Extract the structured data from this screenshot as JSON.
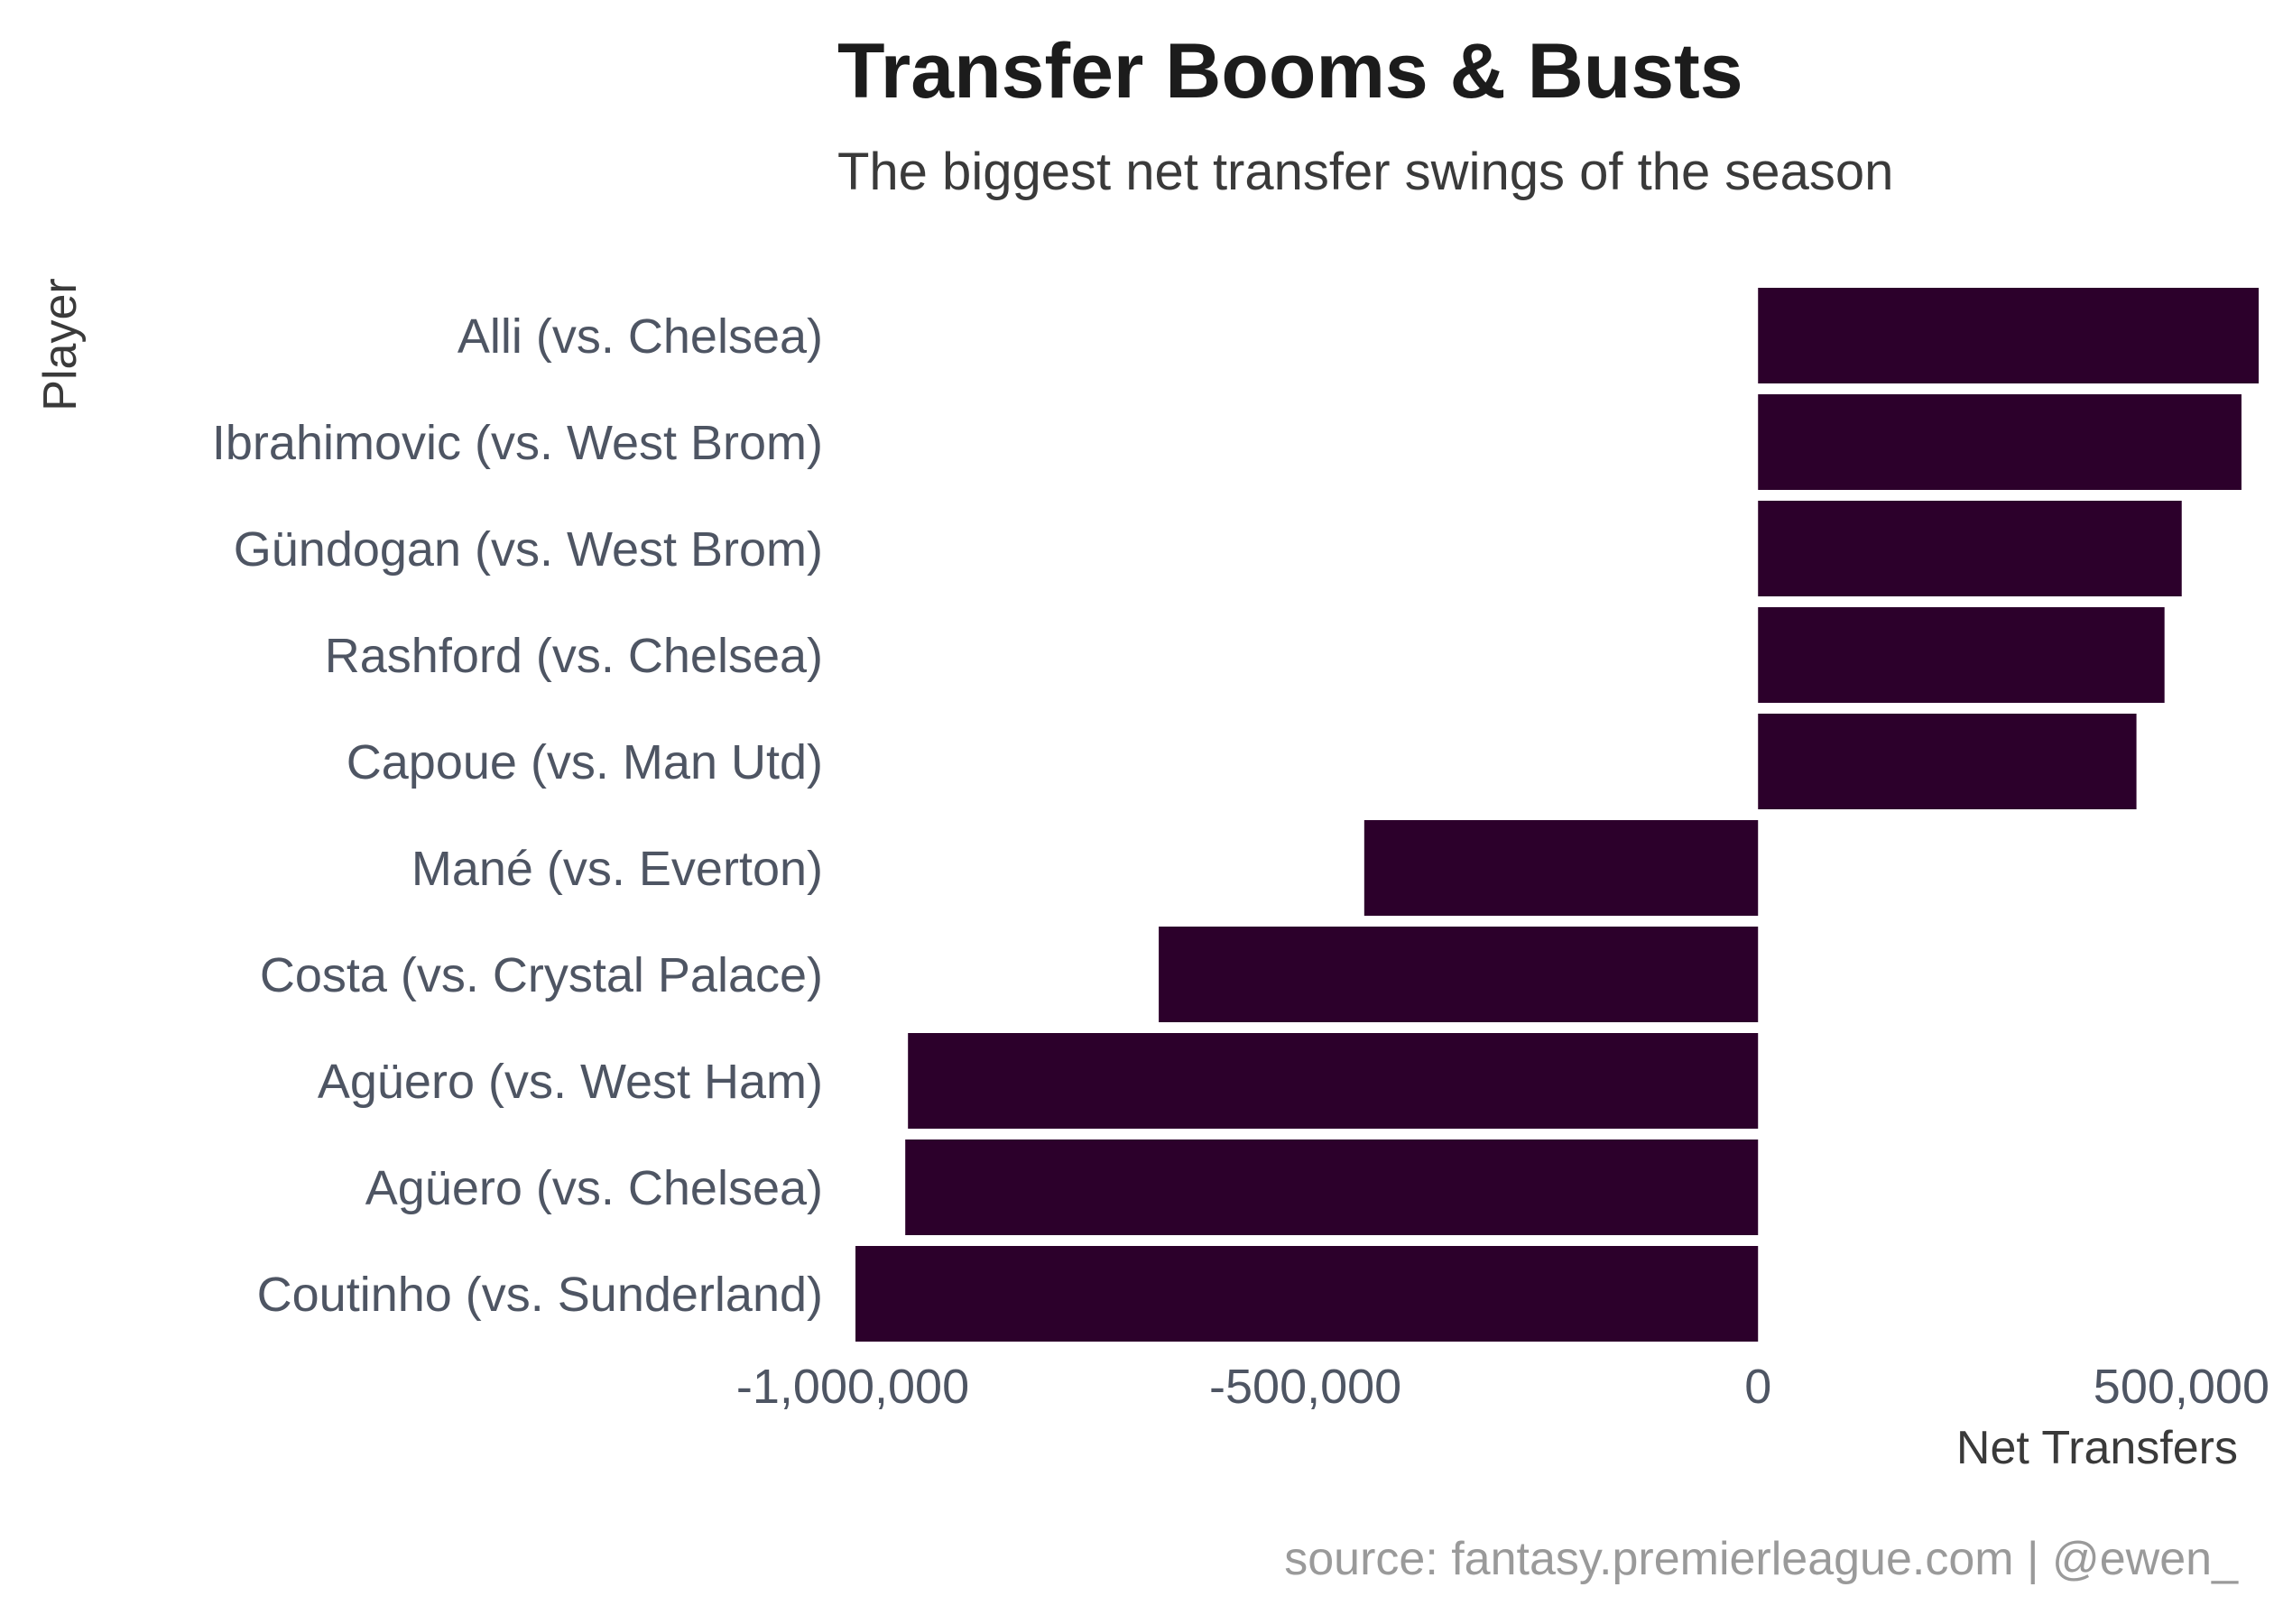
{
  "chart_data": {
    "type": "bar",
    "orientation": "horizontal",
    "title": "Transfer Booms & Busts",
    "subtitle": "The biggest net transfer swings of the season",
    "xlabel": "Net Transfers",
    "ylabel": "Player",
    "caption": "source: fantasy.premierleague.com | @ewen_",
    "xlim": [
      -1000000,
      550000
    ],
    "xticks": [
      -1000000,
      -500000,
      0,
      500000
    ],
    "xtick_labels": [
      "-1,000,000",
      "-500,000",
      "0",
      "500,000"
    ],
    "grid": false,
    "bar_color": "#2c002b",
    "categories": [
      "Alli (vs. Chelsea)",
      "Ibrahimovic (vs. West Brom)",
      "Gündogan (vs. West Brom)",
      "Rashford (vs. Chelsea)",
      "Capoue (vs. Man Utd)",
      "Mané (vs. Everton)",
      "Costa (vs. Crystal Palace)",
      "Agüero (vs. West Ham)",
      "Agüero (vs. Chelsea)",
      "Coutinho (vs. Sunderland)"
    ],
    "values": [
      553000,
      534000,
      468000,
      449000,
      418000,
      -435000,
      -662000,
      -939000,
      -942000,
      -997000
    ]
  }
}
